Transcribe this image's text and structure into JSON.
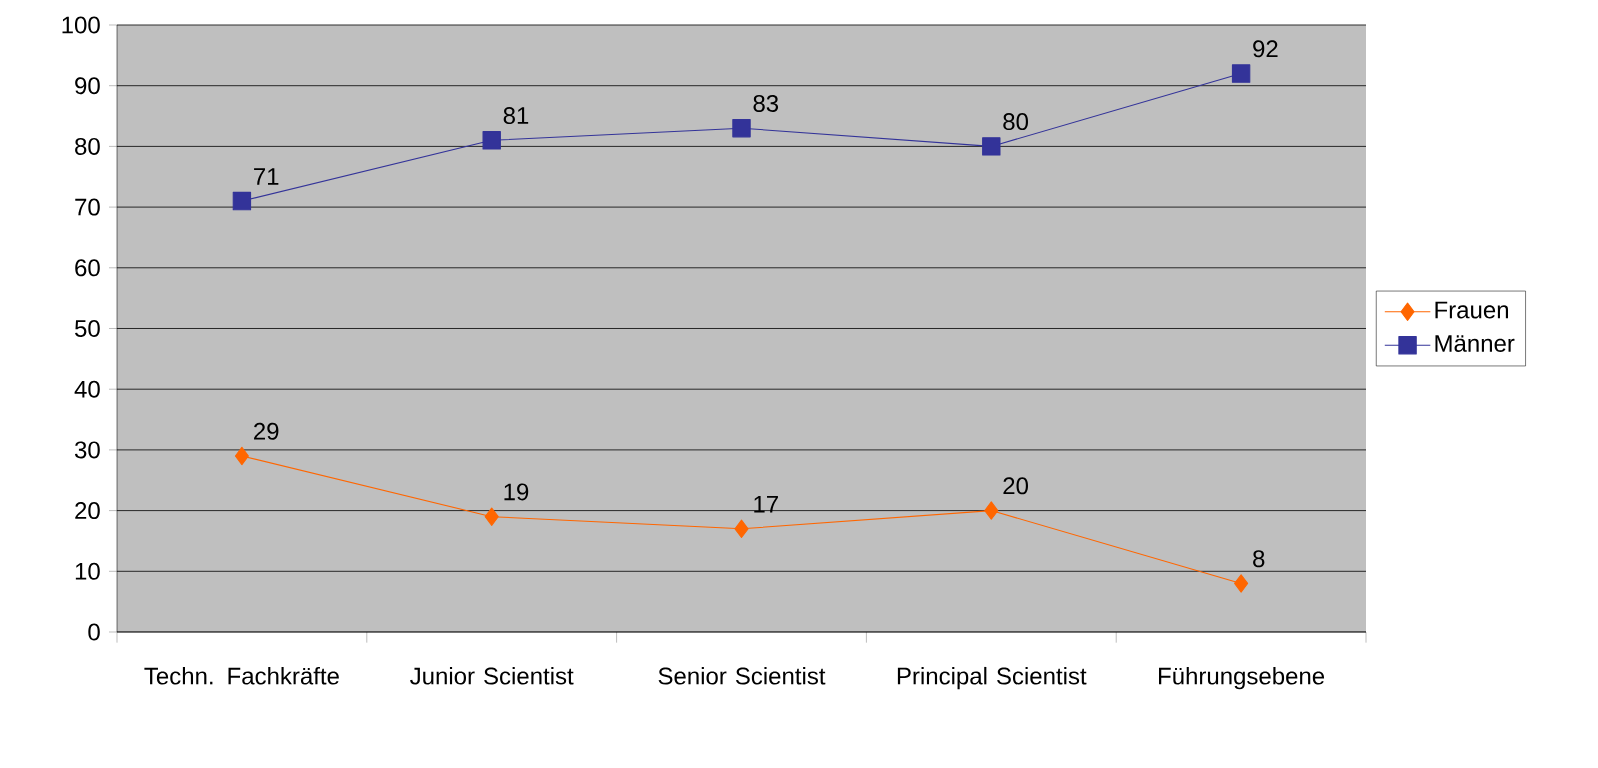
{
  "chart_data": {
    "type": "line",
    "categories": [
      "Techn. Fachkräfte",
      "Junior Scientist",
      "Senior Scientist",
      "Principal Scientist",
      "Führungsebene"
    ],
    "series": [
      {
        "name": "Frauen",
        "color": "#ff6600",
        "marker": "diamond",
        "values": [
          29,
          19,
          17,
          20,
          8
        ]
      },
      {
        "name": "Männer",
        "color": "#333399",
        "marker": "square",
        "values": [
          71,
          81,
          83,
          80,
          92
        ]
      }
    ],
    "ylim": [
      0,
      100
    ],
    "yticks": [
      0,
      10,
      20,
      30,
      40,
      50,
      60,
      70,
      80,
      90,
      100
    ],
    "grid": "y",
    "legend": "right",
    "data_labels": true
  }
}
